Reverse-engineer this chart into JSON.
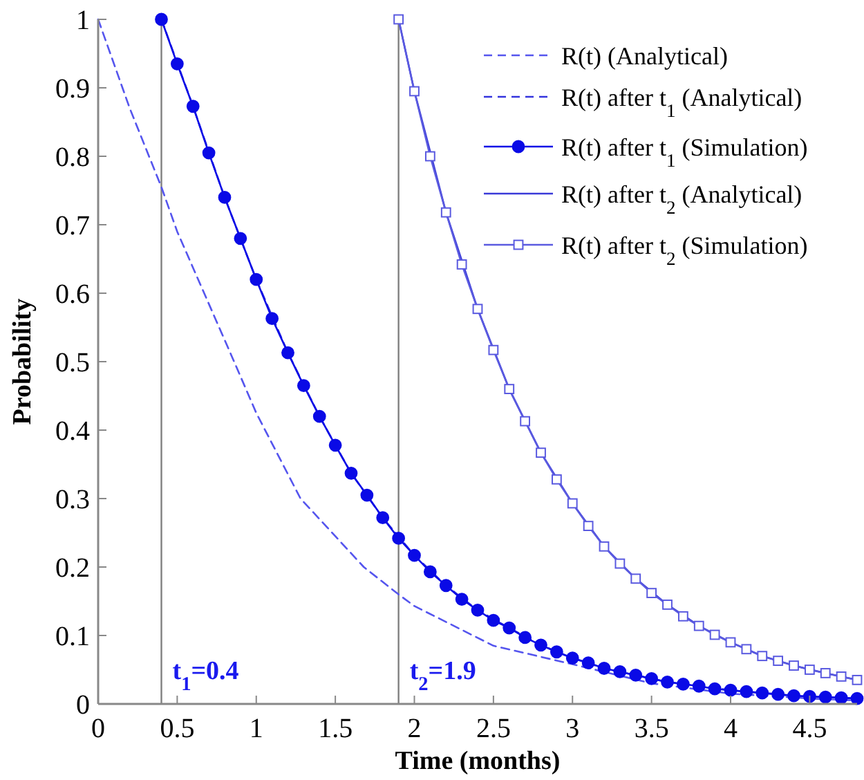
{
  "chart_data": {
    "type": "line",
    "xlabel": "Time (months)",
    "ylabel": "Probability",
    "xlim": [
      0,
      4.8
    ],
    "ylim": [
      0,
      1
    ],
    "xticks": [
      0,
      0.5,
      1,
      1.5,
      2,
      2.5,
      3,
      3.5,
      4,
      4.5
    ],
    "yticks": [
      0,
      0.1,
      0.2,
      0.3,
      0.4,
      0.5,
      0.6,
      0.7,
      0.8,
      0.9,
      1
    ],
    "grid": false,
    "legend": "top right",
    "ref_lines": [
      {
        "axis": "x",
        "value": 0.4,
        "label": "t$_{1}$=0.4",
        "color": "#808080"
      },
      {
        "axis": "x",
        "value": 1.9,
        "label": "t$_{2}$=1.9",
        "color": "#808080"
      }
    ],
    "series": [
      {
        "name": "R(t) (Analytical)",
        "color": "#5555ee",
        "line_style": "dashed",
        "marker": "none",
        "x": [
          0,
          0.2,
          0.4,
          0.5,
          0.86,
          1.0,
          1.28,
          1.5,
          1.68,
          1.9,
          2.0,
          2.5,
          3,
          3.5,
          4,
          4.5,
          4.8
        ],
        "values": [
          1,
          0.87,
          0.755,
          0.69,
          0.5,
          0.425,
          0.3,
          0.245,
          0.2,
          0.16,
          0.143,
          0.085,
          0.058,
          0.03,
          0.015,
          0.008,
          0.005
        ]
      },
      {
        "name": "R(t) after t$_{1}$ (Analytical)",
        "color": "#3333dd",
        "line_style": "dashed",
        "marker": "none",
        "x": [
          0.4,
          0.6,
          0.8,
          1.0,
          1.2,
          1.4,
          1.6,
          1.8,
          2.0,
          2.2,
          2.4,
          2.6,
          2.8,
          3.0,
          3.2,
          3.4,
          3.6,
          3.8,
          4.0,
          4.2,
          4.4,
          4.6,
          4.8
        ],
        "values": [
          1,
          0.873,
          0.74,
          0.62,
          0.513,
          0.42,
          0.337,
          0.272,
          0.217,
          0.173,
          0.137,
          0.111,
          0.086,
          0.067,
          0.052,
          0.042,
          0.032,
          0.026,
          0.02,
          0.016,
          0.012,
          0.01,
          0.008
        ]
      },
      {
        "name": "R(t) after t$_{1}$ (Simulation)",
        "color": "#0a0ae6",
        "line_style": "solid",
        "marker": "circle",
        "x": [
          0.4,
          0.5,
          0.6,
          0.7,
          0.8,
          0.9,
          1.0,
          1.1,
          1.2,
          1.3,
          1.4,
          1.5,
          1.6,
          1.7,
          1.8,
          1.9,
          2.0,
          2.1,
          2.2,
          2.3,
          2.4,
          2.5,
          2.6,
          2.7,
          2.8,
          2.9,
          3.0,
          3.1,
          3.2,
          3.3,
          3.4,
          3.5,
          3.6,
          3.7,
          3.8,
          3.9,
          4.0,
          4.1,
          4.2,
          4.3,
          4.4,
          4.5,
          4.6,
          4.7,
          4.8
        ],
        "values": [
          1,
          0.935,
          0.873,
          0.805,
          0.74,
          0.68,
          0.62,
          0.563,
          0.513,
          0.465,
          0.42,
          0.378,
          0.337,
          0.305,
          0.272,
          0.242,
          0.217,
          0.193,
          0.173,
          0.153,
          0.137,
          0.122,
          0.111,
          0.097,
          0.086,
          0.076,
          0.067,
          0.06,
          0.052,
          0.047,
          0.042,
          0.037,
          0.032,
          0.029,
          0.026,
          0.022,
          0.02,
          0.018,
          0.016,
          0.014,
          0.012,
          0.011,
          0.01,
          0.009,
          0.008
        ]
      },
      {
        "name": "R(t) after t$_{2}$ (Analytical)",
        "color": "#3a3ad8",
        "line_style": "solid",
        "marker": "none",
        "x": [
          1.9,
          2.0,
          2.2,
          2.4,
          2.6,
          2.8,
          3.0,
          3.2,
          3.4,
          3.6,
          3.8,
          4.0,
          4.2,
          4.4,
          4.6,
          4.8
        ],
        "values": [
          1,
          0.895,
          0.718,
          0.577,
          0.46,
          0.367,
          0.293,
          0.23,
          0.183,
          0.145,
          0.114,
          0.09,
          0.07,
          0.056,
          0.045,
          0.035
        ]
      },
      {
        "name": "R(t) after t$_{2}$ (Simulation)",
        "color": "#5a5ae0",
        "line_style": "solid",
        "marker": "square",
        "x": [
          1.9,
          2.0,
          2.1,
          2.2,
          2.3,
          2.4,
          2.5,
          2.6,
          2.7,
          2.8,
          2.9,
          3.0,
          3.1,
          3.2,
          3.3,
          3.4,
          3.5,
          3.6,
          3.7,
          3.8,
          3.9,
          4.0,
          4.1,
          4.2,
          4.3,
          4.4,
          4.5,
          4.6,
          4.7,
          4.8
        ],
        "values": [
          1,
          0.895,
          0.8,
          0.718,
          0.642,
          0.577,
          0.517,
          0.46,
          0.413,
          0.367,
          0.328,
          0.293,
          0.26,
          0.23,
          0.205,
          0.183,
          0.162,
          0.145,
          0.128,
          0.114,
          0.101,
          0.09,
          0.08,
          0.07,
          0.063,
          0.056,
          0.05,
          0.045,
          0.04,
          0.035
        ]
      }
    ]
  }
}
